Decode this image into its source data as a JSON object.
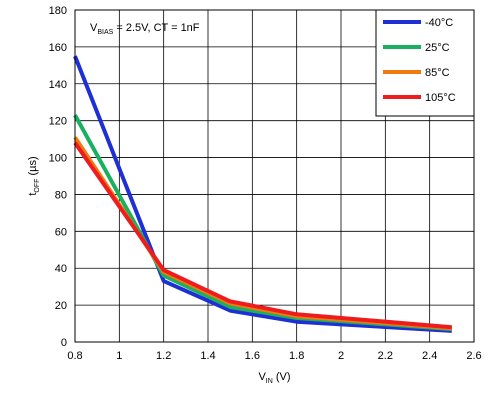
{
  "chart_data": {
    "type": "line",
    "annotation": {
      "prefix": "V",
      "sub": "BIAS",
      "rest": " = 2.5V, CT = 1nF"
    },
    "xlabel": {
      "main": "V",
      "sub": "IN",
      "unit": " (V)"
    },
    "ylabel": {
      "main": "t",
      "sub": "OFF",
      "unit": " (µs)"
    },
    "xlim": [
      0.8,
      2.6
    ],
    "ylim": [
      0,
      180
    ],
    "x_ticks": [
      "0.8",
      "1",
      "1.2",
      "1.4",
      "1.6",
      "1.8",
      "2",
      "2.2",
      "2.4",
      "2.6"
    ],
    "y_ticks": [
      "0",
      "20",
      "40",
      "60",
      "80",
      "100",
      "120",
      "140",
      "160",
      "180"
    ],
    "grid": true,
    "legend_position": "top-right",
    "series": [
      {
        "name": "-40°C",
        "color": "#1f2fd6",
        "x": [
          0.8,
          1.2,
          1.5,
          1.8,
          2.5
        ],
        "y": [
          155,
          33,
          17,
          11,
          6
        ]
      },
      {
        "name": "25°C",
        "color": "#1ab060",
        "x": [
          0.8,
          1.2,
          1.5,
          1.8,
          2.5
        ],
        "y": [
          123,
          36,
          19,
          13,
          7
        ]
      },
      {
        "name": "85°C",
        "color": "#f07a10",
        "x": [
          0.8,
          1.2,
          1.5,
          1.8,
          2.5
        ],
        "y": [
          111,
          38,
          21,
          14,
          7.5
        ]
      },
      {
        "name": "105°C",
        "color": "#ee1c1c",
        "x": [
          0.8,
          1.2,
          1.5,
          1.8,
          2.5
        ],
        "y": [
          108,
          39,
          22,
          15,
          8
        ]
      }
    ]
  }
}
